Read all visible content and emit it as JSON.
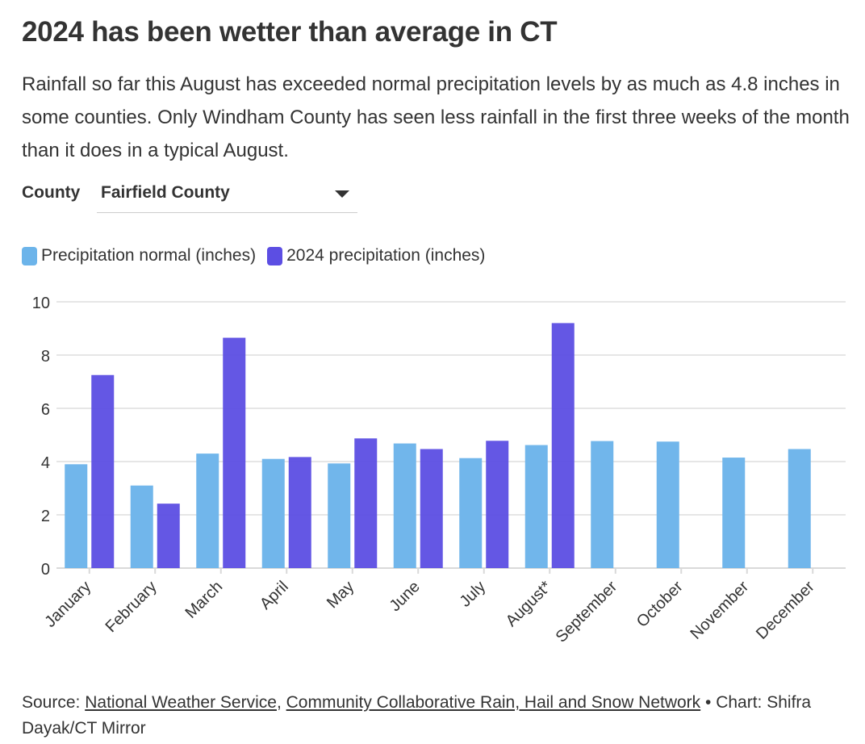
{
  "header": {
    "title": "2024 has been wetter than average in CT",
    "subtitle": "Rainfall so far this August has exceeded normal precipitation levels by as much as 4.8 inches in some counties. Only Windham County has seen less rainfall in the first three weeks of the month than it does in a typical August."
  },
  "controls": {
    "county_label": "County",
    "county_value": "Fairfield County",
    "dropdown_icon": "chevron-down-icon"
  },
  "legend": [
    {
      "label": "Precipitation normal (inches)",
      "color": "#6cb4ea"
    },
    {
      "label": "2024 precipitation (inches)",
      "color": "#5c4ee3"
    }
  ],
  "chart_data": {
    "type": "bar",
    "categories": [
      "January",
      "February",
      "March",
      "April",
      "May",
      "June",
      "July",
      "August*",
      "September",
      "October",
      "November",
      "December"
    ],
    "series": [
      {
        "name": "Precipitation normal (inches)",
        "color": "#6cb4ea",
        "values": [
          3.9,
          3.1,
          4.3,
          4.1,
          3.93,
          4.68,
          4.13,
          4.62,
          4.77,
          4.75,
          4.15,
          4.47
        ]
      },
      {
        "name": "2024 precipitation (inches)",
        "color": "#5c4ee3",
        "values": [
          7.25,
          2.42,
          8.65,
          4.17,
          4.87,
          4.47,
          4.78,
          9.2,
          null,
          null,
          null,
          null
        ]
      }
    ],
    "yticks": [
      0,
      2,
      4,
      6,
      8,
      10
    ],
    "ylim": [
      0,
      10
    ],
    "grid": true,
    "legend_position": "top-left"
  },
  "footer": {
    "source_prefix": "Source: ",
    "source_link_1": "National Weather Service",
    "separator": ", ",
    "source_link_2": "Community Collaborative Rain, Hail and Snow Network",
    "credit": " • Chart: Shifra Dayak/CT Mirror"
  }
}
